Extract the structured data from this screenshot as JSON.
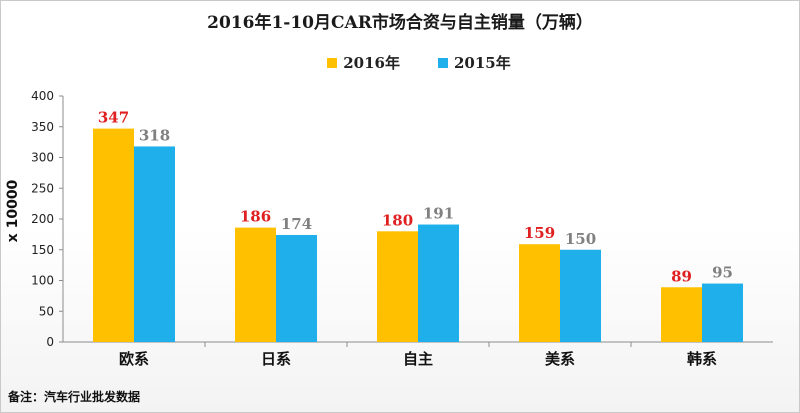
{
  "chart_data": {
    "type": "bar",
    "title": "2016年1-10月CAR市场合资与自主销量（万辆）",
    "ylabel": "x 10000",
    "categories": [
      "欧系",
      "日系",
      "自主",
      "美系",
      "韩系"
    ],
    "series": [
      {
        "name": "2016年",
        "values": [
          347,
          186,
          180,
          159,
          89
        ],
        "color": "#FFC000",
        "label_color": "#E02020"
      },
      {
        "name": "2015年",
        "values": [
          318,
          174,
          191,
          150,
          95
        ],
        "color": "#1FB0EC",
        "label_color": "#808080"
      }
    ],
    "ylim": [
      0,
      400
    ],
    "yticks": [
      0,
      50,
      100,
      150,
      200,
      250,
      300,
      350,
      400
    ],
    "grid": false,
    "legend": "top"
  },
  "footnote": "备注：汽车行业批发数据"
}
